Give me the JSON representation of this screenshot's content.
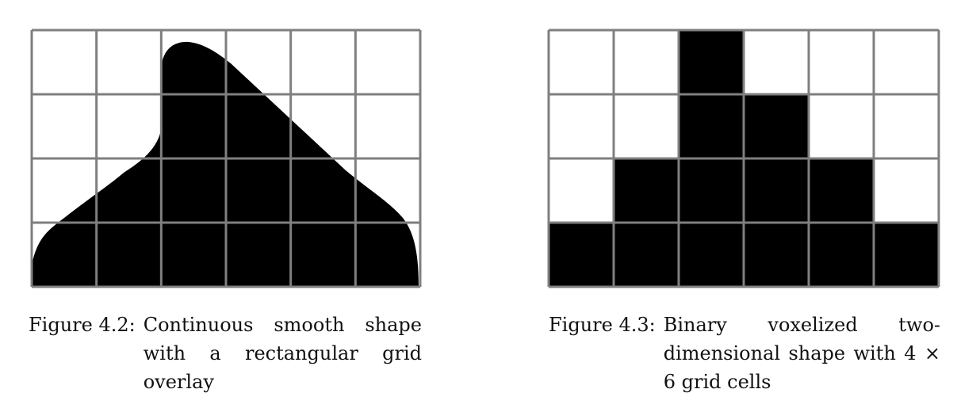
{
  "figures": [
    {
      "label": "Figure 4.2:",
      "caption": "Continuous smooth shape with a rectangular grid overlay",
      "grid": {
        "rows": 4,
        "cols": 6
      }
    },
    {
      "label": "Figure 4.3:",
      "caption": "Binary voxelized two-dimensional shape with 4 × 6 grid cells",
      "grid": {
        "rows": 4,
        "cols": 6,
        "cells": [
          [
            0,
            0,
            1,
            0,
            0,
            0
          ],
          [
            0,
            0,
            1,
            1,
            0,
            0
          ],
          [
            0,
            1,
            1,
            1,
            1,
            0
          ],
          [
            1,
            1,
            1,
            1,
            1,
            1
          ]
        ]
      }
    }
  ],
  "colors": {
    "fill": "#000000",
    "grid_line": "#7f7f7f",
    "background": "#ffffff"
  }
}
